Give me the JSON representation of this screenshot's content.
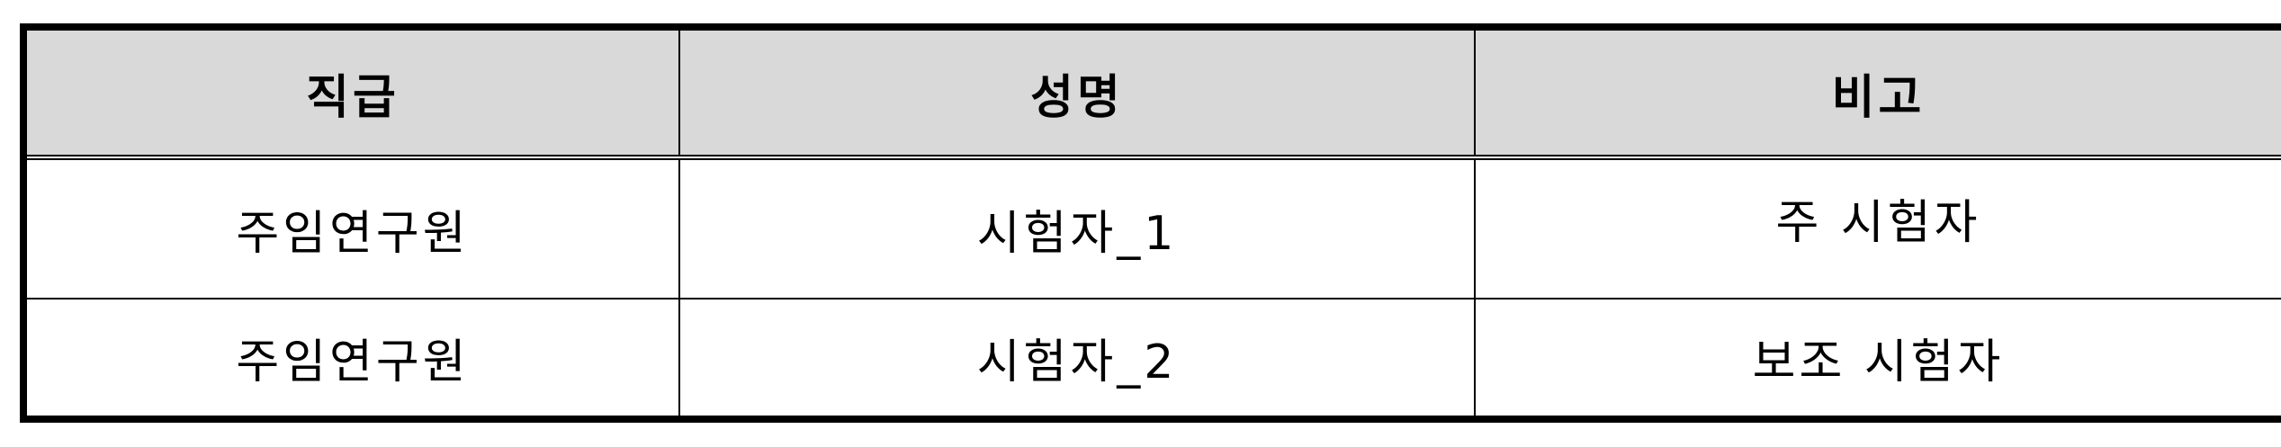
{
  "table": {
    "headers": [
      "직급",
      "성명",
      "비고"
    ],
    "rows": [
      [
        "주임연구원",
        "시험자_1",
        "주 시험자"
      ],
      [
        "주임연구원",
        "시험자_2",
        "보조 시험자"
      ]
    ]
  }
}
